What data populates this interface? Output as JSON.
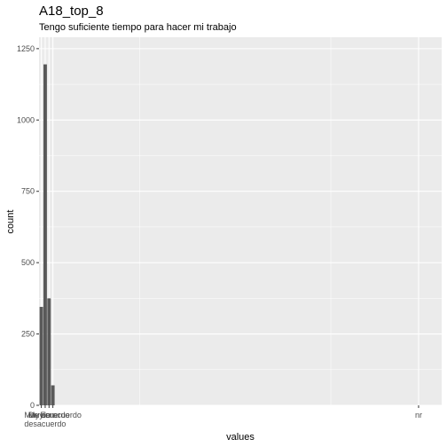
{
  "colors": {
    "panel_background": "#ebebeb",
    "grid_major": "#ffffff",
    "bar_fill": "#595959",
    "tick_text": "#4d4d4d"
  },
  "chart_data": {
    "type": "bar",
    "title": "A18_top_8",
    "subtitle": "Tengo suficiente tiempo para hacer mi trabajo",
    "xlabel": "values",
    "ylabel": "count",
    "ylim": [
      0,
      1290
    ],
    "yticks": [
      0,
      250,
      500,
      750,
      1000,
      1250
    ],
    "xlim": [
      0.4,
      105
    ],
    "grid": true,
    "legend": "none",
    "categories": [
      {
        "label": "Muy en desacuerdo",
        "x": 1,
        "value": 345
      },
      {
        "label": "En desacuerdo",
        "x": 2,
        "value": 1195
      },
      {
        "label": "De acuerdo",
        "x": 3,
        "value": 375
      },
      {
        "label": "Muy de acuerdo",
        "x": 4,
        "value": 70
      },
      {
        "label": "nr",
        "x": 99,
        "value": 0
      }
    ],
    "x_tick_labels": [
      {
        "x": 1,
        "lines": [
          "Muy en"
        ]
      },
      {
        "x": 2,
        "lines": [
          "En",
          "desacuerdo"
        ]
      },
      {
        "x": 3,
        "lines": [
          "De acuerdo"
        ]
      },
      {
        "x": 4,
        "lines": [
          "Muy de acuerdo"
        ]
      },
      {
        "x": 99,
        "lines": [
          "nr"
        ]
      }
    ]
  }
}
